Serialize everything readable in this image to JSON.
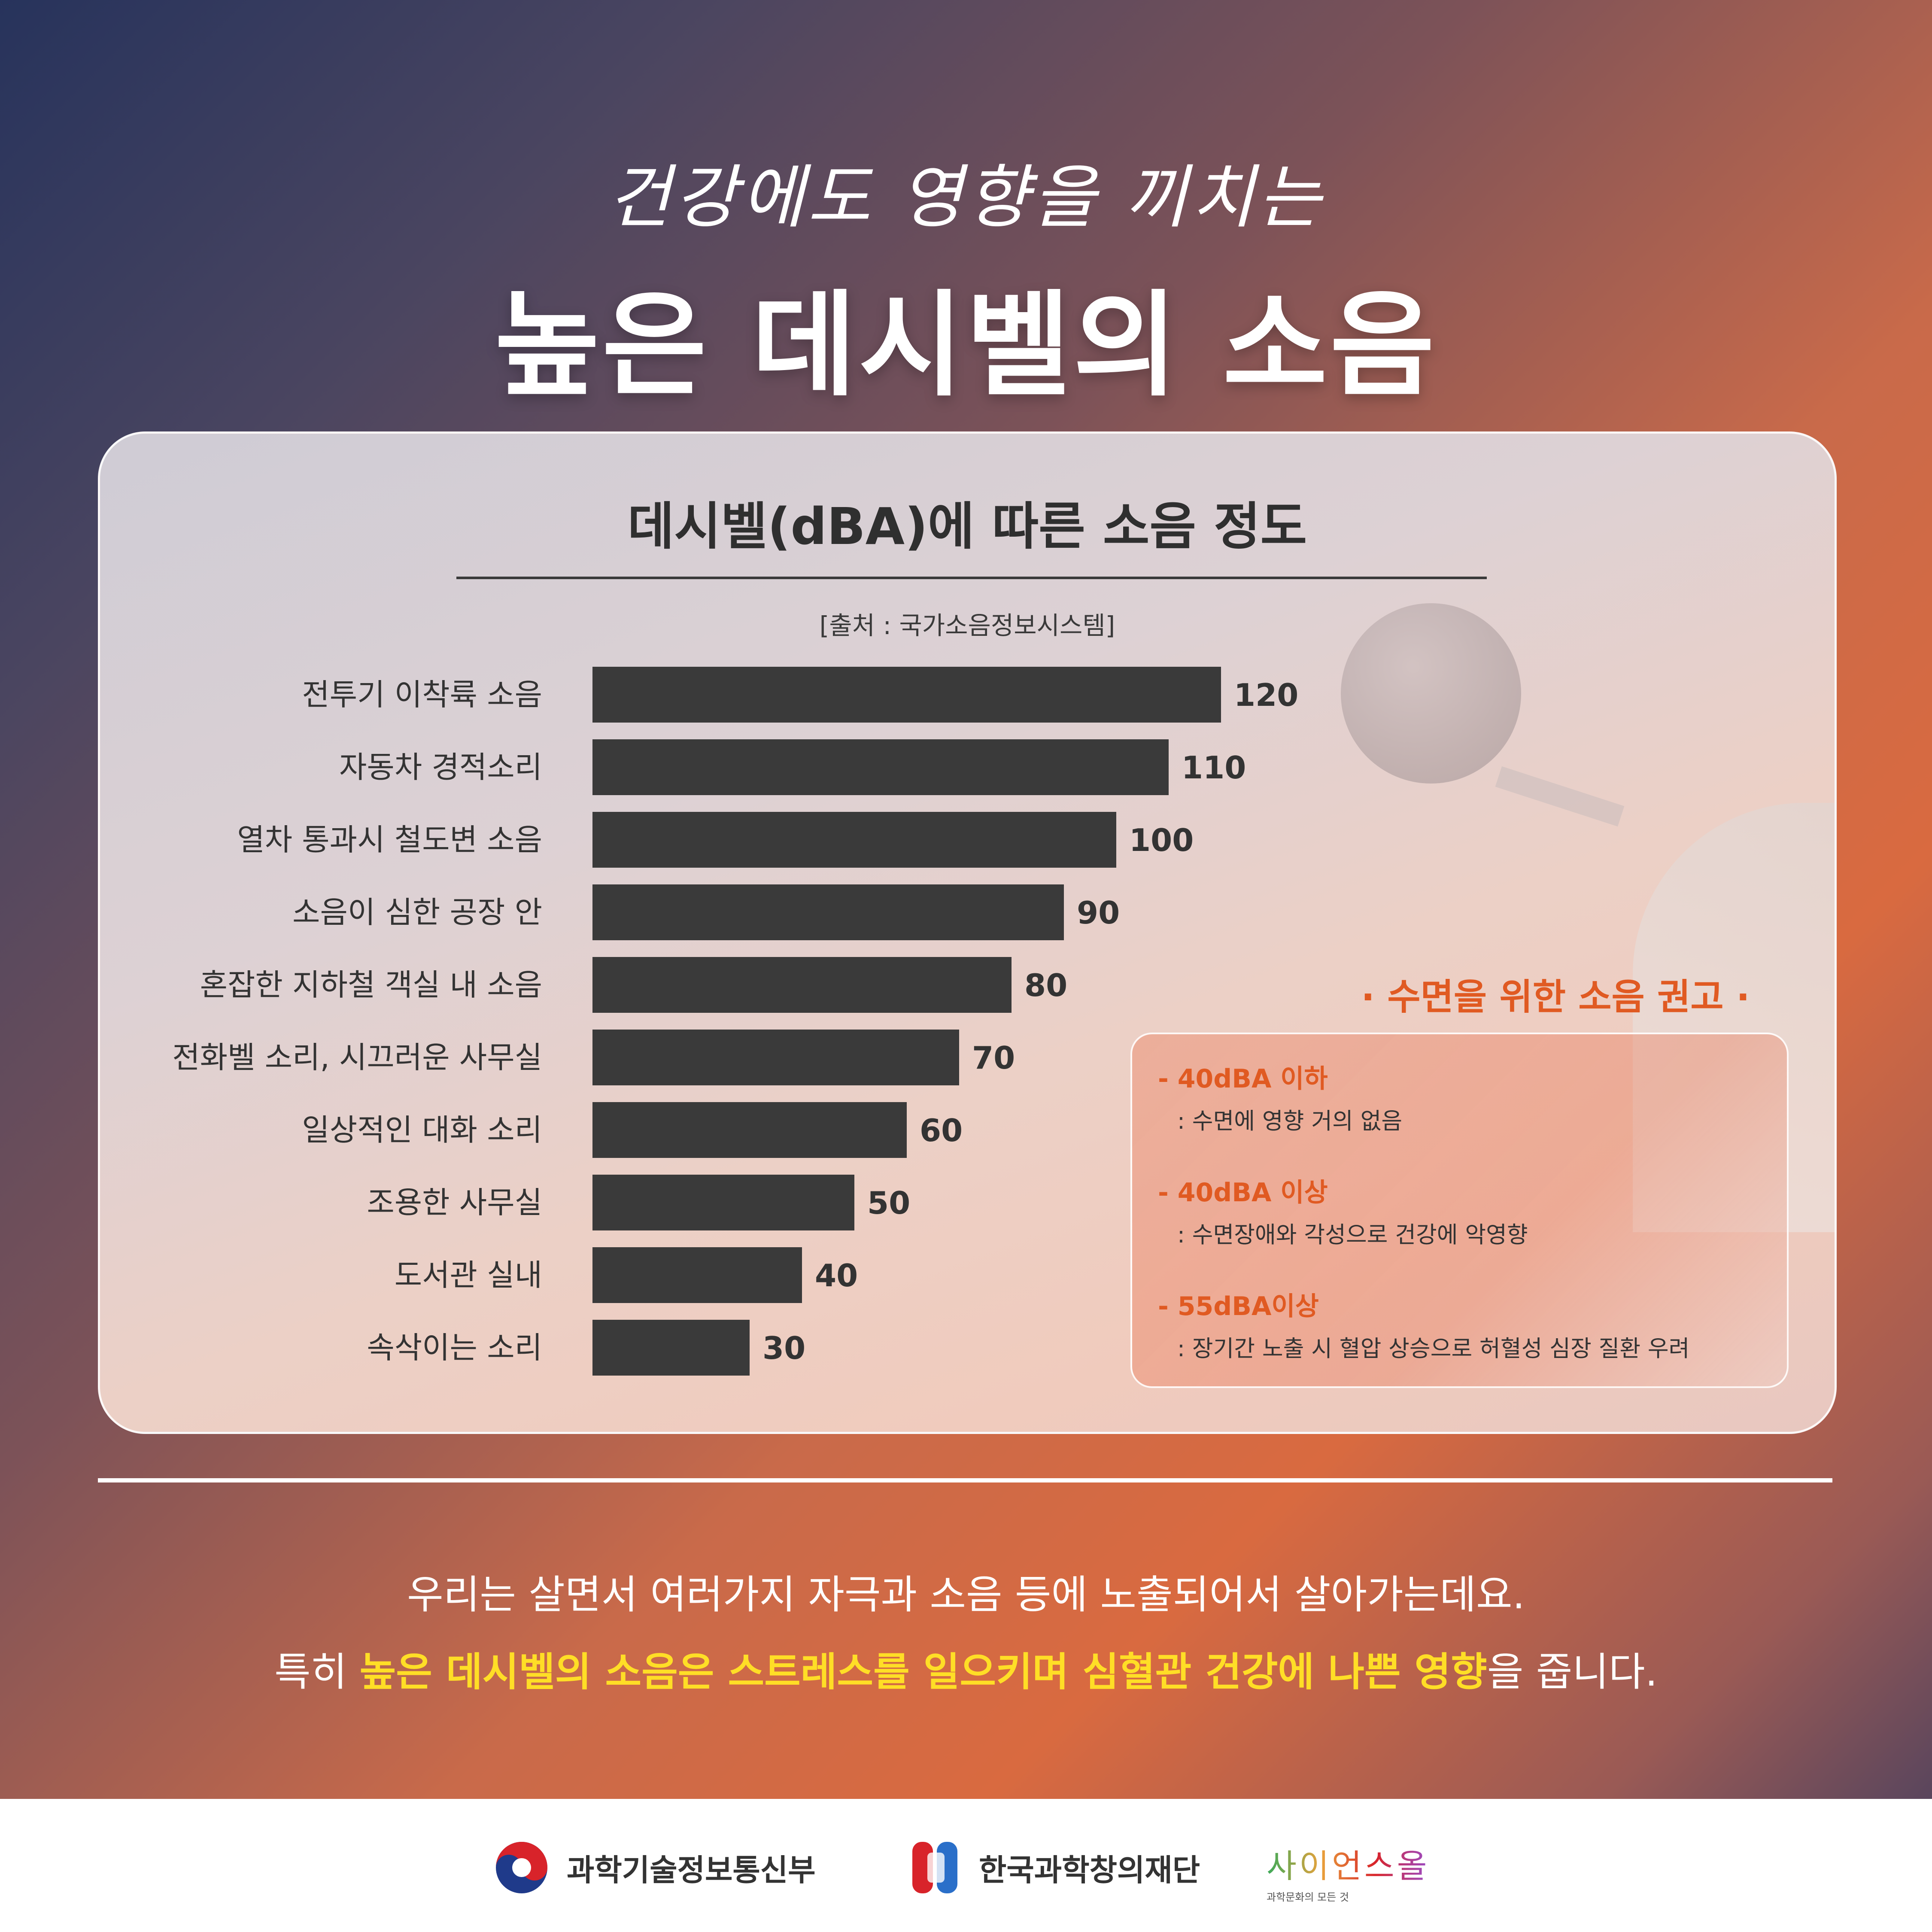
{
  "header": {
    "subtitle": "건강에도 영향을 끼치는",
    "title": "높은 데시벨의 소음"
  },
  "chart_data": {
    "type": "bar",
    "orientation": "horizontal",
    "title": "데시벨(dBA)에 따른 소음 정도",
    "source": "[출처 : 국가소음정보시스템]",
    "categories": [
      "전투기 이착륙 소음",
      "자동차 경적소리",
      "열차 통과시 철도변 소음",
      "소음이 심한 공장 안",
      "혼잡한 지하철 객실 내 소음",
      "전화벨 소리, 시끄러운 사무실",
      "일상적인 대화 소리",
      "조용한 사무실",
      "도서관 실내",
      "속삭이는 소리"
    ],
    "values": [
      120,
      110,
      100,
      90,
      80,
      70,
      60,
      50,
      40,
      30
    ],
    "bar_color": "#3a3a3a",
    "xlabel": "",
    "ylabel": "",
    "grid": false,
    "legend": "none"
  },
  "recommendation": {
    "title": "· 수면을 위한 소음 권고 ·",
    "items": [
      {
        "head": "- 40dBA 이하",
        "desc": ": 수면에 영향 거의 없음"
      },
      {
        "head": "- 40dBA 이상",
        "desc": ": 수면장애와 각성으로 건강에 악영향"
      },
      {
        "head": "- 55dBA이상",
        "desc": ": 장기간 노출 시 혈압 상승으로 허혈성 심장 질환 우려"
      }
    ]
  },
  "body": {
    "line1": "우리는 살면서 여러가지 자극과 소음 등에 노출되어서 살아가는데요.",
    "line2_prefix": "특히 ",
    "line2_highlight": "높은 데시벨의 소음은 스트레스를 일으키며 심혈관 건강에 나쁜 영향",
    "line2_suffix": "을 줍니다."
  },
  "footer": {
    "logos": [
      {
        "name": "과학기술정보통신부",
        "icon": "taegeuk-icon"
      },
      {
        "name": "한국과학창의재단",
        "icon": "kofac-icon"
      },
      {
        "name": "사이언스올",
        "tagline": "과학문화의 모든 것",
        "icon": "scienceall-logo"
      }
    ]
  },
  "colors": {
    "accent_orange": "#e05a22",
    "highlight_yellow": "#ffde26",
    "bar": "#3a3a3a"
  }
}
